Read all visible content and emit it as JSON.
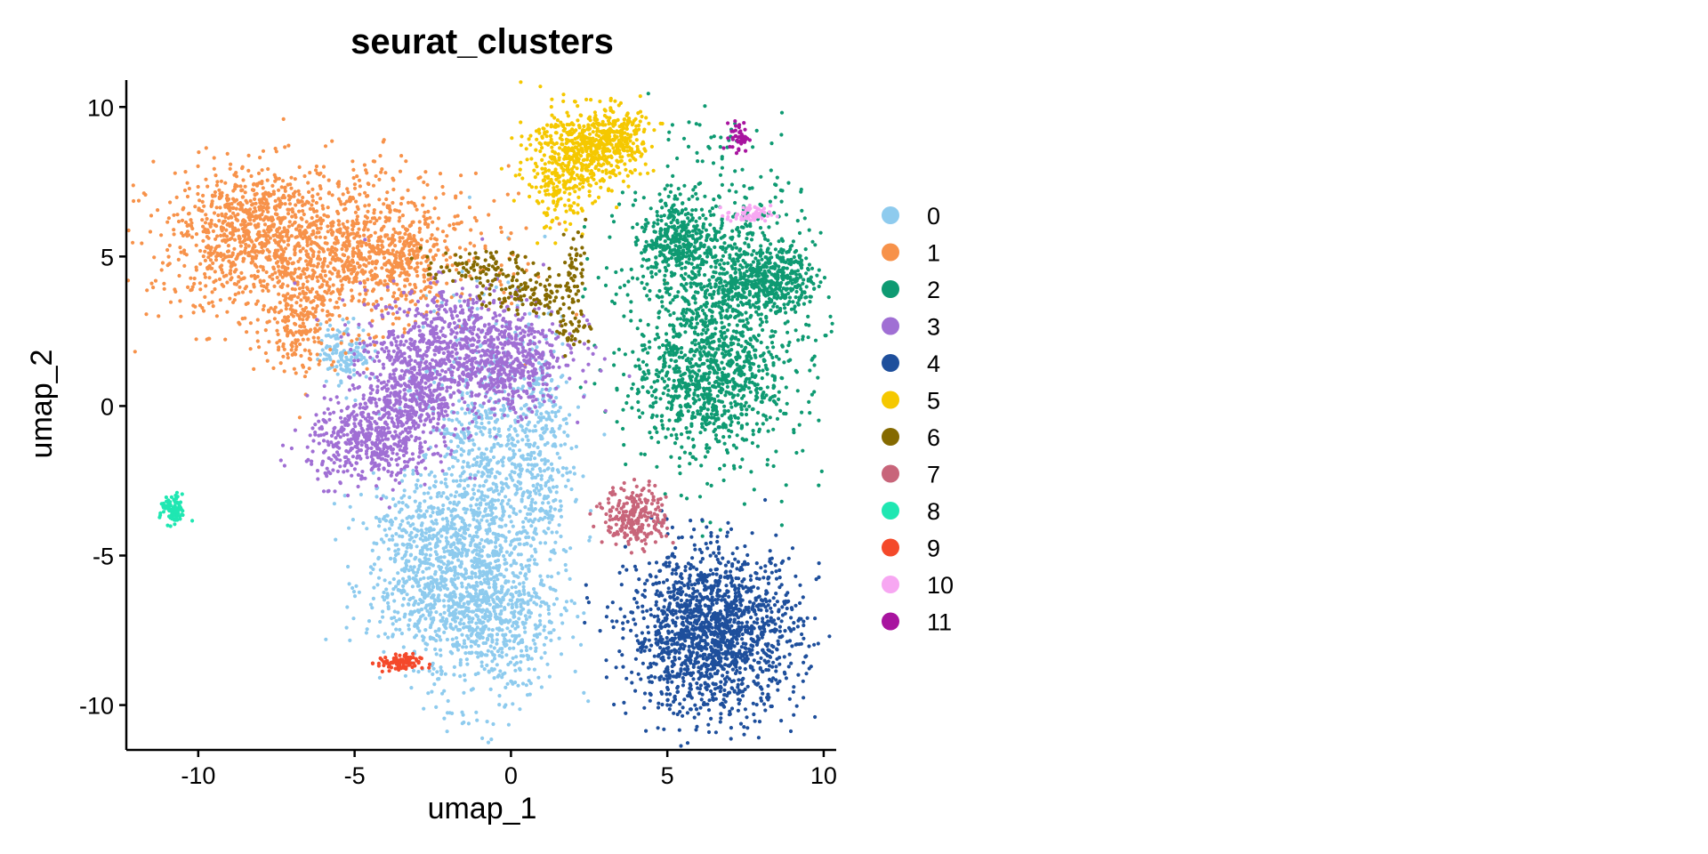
{
  "chart_data": {
    "type": "scatter",
    "title": "seurat_clusters",
    "xlabel": "umap_1",
    "ylabel": "umap_2",
    "xlim": [
      -12.3,
      10.4
    ],
    "ylim": [
      -11.5,
      10.9
    ],
    "xticks": [
      -10,
      -5,
      0,
      5,
      10
    ],
    "yticks": [
      -10,
      -5,
      0,
      5,
      10
    ],
    "xtick_labels": [
      "-10",
      "-5",
      "0",
      "5",
      "10"
    ],
    "ytick_labels": [
      "-10",
      "-5",
      "0",
      "5",
      "10"
    ],
    "grid": false,
    "legend_position": "right",
    "clusters": [
      {
        "name": "0",
        "color": "#8ECBEE",
        "n": 2600,
        "blobs": [
          [
            -0.8,
            -3.5,
            1.2,
            3.2,
            0.45
          ],
          [
            -2.6,
            -6.0,
            1.0,
            1.2,
            0.2
          ],
          [
            -0.5,
            -7.0,
            1.0,
            1.2,
            0.15
          ],
          [
            0.9,
            -1.5,
            0.5,
            2.0,
            0.1
          ],
          [
            -5.3,
            1.8,
            0.4,
            0.5,
            0.05
          ],
          [
            -3.0,
            -3.8,
            0.9,
            0.6,
            0.05
          ]
        ]
      },
      {
        "name": "1",
        "color": "#F7924A",
        "n": 2100,
        "blobs": [
          [
            -6.2,
            5.3,
            2.6,
            1.3,
            0.65
          ],
          [
            -8.5,
            6.2,
            1.0,
            0.8,
            0.15
          ],
          [
            -6.8,
            3.0,
            0.6,
            1.0,
            0.1
          ],
          [
            -3.8,
            4.8,
            0.8,
            0.7,
            0.1
          ]
        ]
      },
      {
        "name": "2",
        "color": "#0E9A72",
        "n": 2300,
        "blobs": [
          [
            6.6,
            3.0,
            1.4,
            2.5,
            0.6
          ],
          [
            8.3,
            4.3,
            0.7,
            0.5,
            0.15
          ],
          [
            6.2,
            0.6,
            1.2,
            0.8,
            0.15
          ],
          [
            5.2,
            5.6,
            0.5,
            0.7,
            0.1
          ]
        ]
      },
      {
        "name": "3",
        "color": "#A06FD4",
        "n": 1900,
        "blobs": [
          [
            -1.5,
            2.0,
            1.6,
            1.0,
            0.45
          ],
          [
            -4.5,
            -1.2,
            1.0,
            0.7,
            0.25
          ],
          [
            -3.2,
            0.3,
            0.8,
            0.9,
            0.2
          ],
          [
            0.0,
            1.0,
            0.6,
            0.6,
            0.1
          ]
        ]
      },
      {
        "name": "4",
        "color": "#1E4F9C",
        "n": 1600,
        "blobs": [
          [
            6.5,
            -7.6,
            1.35,
            1.35,
            1.0
          ]
        ]
      },
      {
        "name": "5",
        "color": "#F5C800",
        "n": 800,
        "blobs": [
          [
            2.2,
            8.6,
            0.8,
            0.7,
            0.6
          ],
          [
            3.4,
            9.0,
            0.5,
            0.5,
            0.25
          ],
          [
            1.5,
            7.1,
            0.5,
            0.6,
            0.15
          ]
        ]
      },
      {
        "name": "6",
        "color": "#856A00",
        "n": 280,
        "blobs": [
          [
            -1.0,
            4.6,
            0.9,
            0.3,
            0.35
          ],
          [
            0.6,
            3.7,
            0.7,
            0.3,
            0.35
          ],
          [
            2.0,
            2.7,
            0.3,
            0.4,
            0.15
          ],
          [
            2.0,
            4.8,
            0.2,
            0.6,
            0.15
          ]
        ]
      },
      {
        "name": "7",
        "color": "#C8657A",
        "n": 250,
        "blobs": [
          [
            4.0,
            -3.7,
            0.5,
            0.5,
            1.0
          ]
        ]
      },
      {
        "name": "8",
        "color": "#1FE7B2",
        "n": 90,
        "blobs": [
          [
            -10.8,
            -3.5,
            0.2,
            0.25,
            1.0
          ]
        ]
      },
      {
        "name": "9",
        "color": "#F4492A",
        "n": 90,
        "blobs": [
          [
            -3.6,
            -8.6,
            0.35,
            0.15,
            1.0
          ]
        ]
      },
      {
        "name": "10",
        "color": "#F7A7F2",
        "n": 60,
        "blobs": [
          [
            7.6,
            6.4,
            0.35,
            0.15,
            1.0
          ]
        ]
      },
      {
        "name": "11",
        "color": "#A8149F",
        "n": 45,
        "blobs": [
          [
            7.3,
            9.0,
            0.15,
            0.25,
            1.0
          ]
        ]
      }
    ]
  }
}
